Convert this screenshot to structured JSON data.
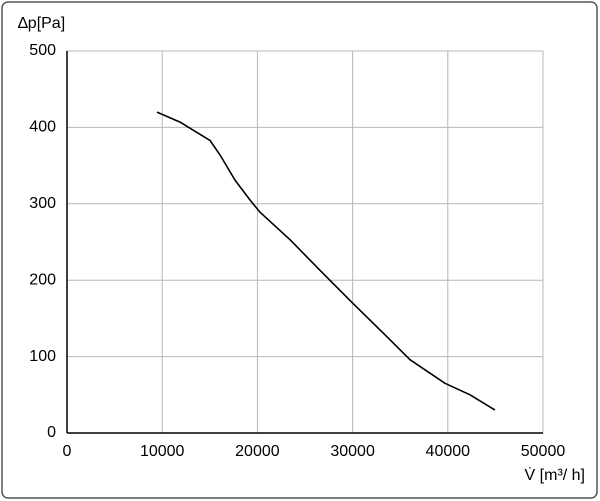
{
  "chart_data": {
    "type": "line",
    "ylabel": "∆p[Pa]",
    "xlabel": "V̇ [m³/ h]",
    "x": [
      9450,
      11870,
      15020,
      16070,
      17650,
      19220,
      20270,
      23420,
      26580,
      29940,
      32880,
      36030,
      39710,
      42330,
      44960
    ],
    "series": [
      {
        "color": "#000000",
        "values": [
          420,
          407,
          383,
          364,
          331,
          305,
          289,
          253,
          213,
          171,
          135,
          96,
          65,
          50,
          30
        ]
      }
    ],
    "xlim": [
      0,
      50000
    ],
    "xticks": [
      0,
      10000,
      20000,
      30000,
      40000,
      50000
    ],
    "ylim": [
      0,
      500
    ],
    "yticks": [
      0,
      100,
      200,
      300,
      400,
      500
    ],
    "grid": true
  }
}
